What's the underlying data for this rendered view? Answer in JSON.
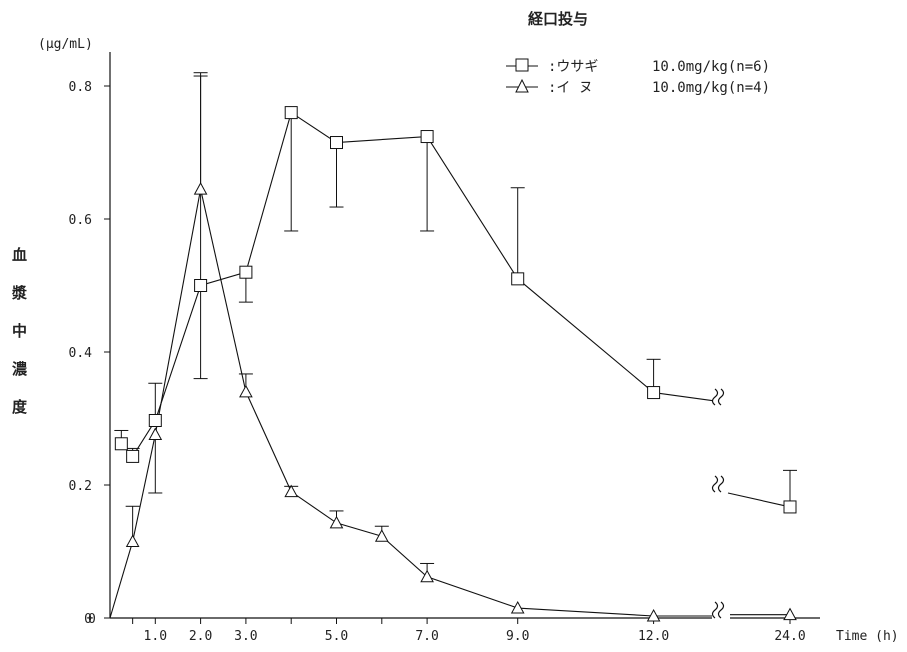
{
  "chart_data": {
    "type": "line",
    "title": "経口投与",
    "ylabel": "血漿中濃度",
    "yunit": "(μg/mL)",
    "xlabel": "Time (h)",
    "ylim": [
      0,
      0.85
    ],
    "yticks": [
      0,
      0.2,
      0.4,
      0.6,
      0.8
    ],
    "ytick_labels": [
      "0",
      "0.2",
      "0.4",
      "0.6",
      "0.8"
    ],
    "xticks": [
      1.0,
      2.0,
      3.0,
      5.0,
      7.0,
      9.0,
      12.0,
      24.0
    ],
    "xtick_labels": [
      "1.0",
      "2.0",
      "3.0",
      "5.0",
      "7.0",
      "9.0",
      "12.0",
      "24.0"
    ],
    "axis_break": "between 12.0 and 24.0",
    "legend_position": "top-right",
    "series": [
      {
        "name": "ウサギ",
        "legend_label": ":ウサギ",
        "dose": "10.0mg/kg(n=6)",
        "marker": "square",
        "x": [
          0.25,
          0.5,
          1.0,
          2.0,
          3.0,
          4.0,
          5.0,
          7.0,
          9.0,
          12.0,
          24.0
        ],
        "y": [
          0.262,
          0.243,
          0.297,
          0.5,
          0.52,
          0.76,
          0.715,
          0.724,
          0.51,
          0.339,
          0.167
        ],
        "err_upper": [
          0.02,
          0.012,
          0.056,
          0.32,
          0.0,
          0.0,
          0.0,
          0.0,
          0.137,
          0.05,
          0.055
        ],
        "err_lower": [
          0.0,
          0.0,
          0.0,
          0.14,
          0.045,
          0.178,
          0.097,
          0.142,
          0.0,
          0.0,
          0.0
        ]
      },
      {
        "name": "イヌ",
        "legend_label": ":イ ヌ",
        "dose": "10.0mg/kg(n=4)",
        "marker": "triangle",
        "x": [
          0.0,
          0.5,
          1.0,
          2.0,
          3.0,
          4.0,
          5.0,
          6.0,
          7.0,
          9.0,
          12.0,
          24.0
        ],
        "y": [
          0.0,
          0.115,
          0.276,
          0.645,
          0.34,
          0.19,
          0.143,
          0.123,
          0.062,
          0.015,
          0.003,
          0.005
        ],
        "err_upper": [
          0.0,
          0.053,
          0.0,
          0.17,
          0.027,
          0.008,
          0.018,
          0.015,
          0.02,
          0.0,
          0.0,
          0.0
        ],
        "err_lower": [
          0.0,
          0.0,
          0.088,
          0.0,
          0.0,
          0.0,
          0.0,
          0.0,
          0.0,
          0.0,
          0.0,
          0.0
        ]
      }
    ]
  }
}
